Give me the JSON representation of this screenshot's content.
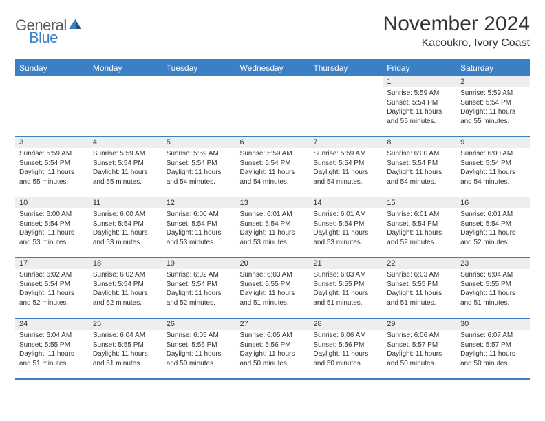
{
  "brand": {
    "text_general": "General",
    "text_blue": "Blue",
    "general_color": "#5a5a5a",
    "blue_color": "#3b7fc4"
  },
  "title": "November 2024",
  "location": "Kacoukro, Ivory Coast",
  "colors": {
    "header_bg": "#3b7fc4",
    "header_text": "#ffffff",
    "daynum_bg": "#eceeef",
    "text": "#333333",
    "border": "#3b7fc4",
    "page_bg": "#ffffff"
  },
  "typography": {
    "title_fontsize": 30,
    "location_fontsize": 16,
    "dayhead_fontsize": 12,
    "daynum_fontsize": 11,
    "body_fontsize": 10
  },
  "day_names": [
    "Sunday",
    "Monday",
    "Tuesday",
    "Wednesday",
    "Thursday",
    "Friday",
    "Saturday"
  ],
  "weeks": [
    [
      {
        "empty": true
      },
      {
        "empty": true
      },
      {
        "empty": true
      },
      {
        "empty": true
      },
      {
        "empty": true
      },
      {
        "day": "1",
        "sunrise": "Sunrise: 5:59 AM",
        "sunset": "Sunset: 5:54 PM",
        "daylight": "Daylight: 11 hours and 55 minutes."
      },
      {
        "day": "2",
        "sunrise": "Sunrise: 5:59 AM",
        "sunset": "Sunset: 5:54 PM",
        "daylight": "Daylight: 11 hours and 55 minutes."
      }
    ],
    [
      {
        "day": "3",
        "sunrise": "Sunrise: 5:59 AM",
        "sunset": "Sunset: 5:54 PM",
        "daylight": "Daylight: 11 hours and 55 minutes."
      },
      {
        "day": "4",
        "sunrise": "Sunrise: 5:59 AM",
        "sunset": "Sunset: 5:54 PM",
        "daylight": "Daylight: 11 hours and 55 minutes."
      },
      {
        "day": "5",
        "sunrise": "Sunrise: 5:59 AM",
        "sunset": "Sunset: 5:54 PM",
        "daylight": "Daylight: 11 hours and 54 minutes."
      },
      {
        "day": "6",
        "sunrise": "Sunrise: 5:59 AM",
        "sunset": "Sunset: 5:54 PM",
        "daylight": "Daylight: 11 hours and 54 minutes."
      },
      {
        "day": "7",
        "sunrise": "Sunrise: 5:59 AM",
        "sunset": "Sunset: 5:54 PM",
        "daylight": "Daylight: 11 hours and 54 minutes."
      },
      {
        "day": "8",
        "sunrise": "Sunrise: 6:00 AM",
        "sunset": "Sunset: 5:54 PM",
        "daylight": "Daylight: 11 hours and 54 minutes."
      },
      {
        "day": "9",
        "sunrise": "Sunrise: 6:00 AM",
        "sunset": "Sunset: 5:54 PM",
        "daylight": "Daylight: 11 hours and 54 minutes."
      }
    ],
    [
      {
        "day": "10",
        "sunrise": "Sunrise: 6:00 AM",
        "sunset": "Sunset: 5:54 PM",
        "daylight": "Daylight: 11 hours and 53 minutes."
      },
      {
        "day": "11",
        "sunrise": "Sunrise: 6:00 AM",
        "sunset": "Sunset: 5:54 PM",
        "daylight": "Daylight: 11 hours and 53 minutes."
      },
      {
        "day": "12",
        "sunrise": "Sunrise: 6:00 AM",
        "sunset": "Sunset: 5:54 PM",
        "daylight": "Daylight: 11 hours and 53 minutes."
      },
      {
        "day": "13",
        "sunrise": "Sunrise: 6:01 AM",
        "sunset": "Sunset: 5:54 PM",
        "daylight": "Daylight: 11 hours and 53 minutes."
      },
      {
        "day": "14",
        "sunrise": "Sunrise: 6:01 AM",
        "sunset": "Sunset: 5:54 PM",
        "daylight": "Daylight: 11 hours and 53 minutes."
      },
      {
        "day": "15",
        "sunrise": "Sunrise: 6:01 AM",
        "sunset": "Sunset: 5:54 PM",
        "daylight": "Daylight: 11 hours and 52 minutes."
      },
      {
        "day": "16",
        "sunrise": "Sunrise: 6:01 AM",
        "sunset": "Sunset: 5:54 PM",
        "daylight": "Daylight: 11 hours and 52 minutes."
      }
    ],
    [
      {
        "day": "17",
        "sunrise": "Sunrise: 6:02 AM",
        "sunset": "Sunset: 5:54 PM",
        "daylight": "Daylight: 11 hours and 52 minutes."
      },
      {
        "day": "18",
        "sunrise": "Sunrise: 6:02 AM",
        "sunset": "Sunset: 5:54 PM",
        "daylight": "Daylight: 11 hours and 52 minutes."
      },
      {
        "day": "19",
        "sunrise": "Sunrise: 6:02 AM",
        "sunset": "Sunset: 5:54 PM",
        "daylight": "Daylight: 11 hours and 52 minutes."
      },
      {
        "day": "20",
        "sunrise": "Sunrise: 6:03 AM",
        "sunset": "Sunset: 5:55 PM",
        "daylight": "Daylight: 11 hours and 51 minutes."
      },
      {
        "day": "21",
        "sunrise": "Sunrise: 6:03 AM",
        "sunset": "Sunset: 5:55 PM",
        "daylight": "Daylight: 11 hours and 51 minutes."
      },
      {
        "day": "22",
        "sunrise": "Sunrise: 6:03 AM",
        "sunset": "Sunset: 5:55 PM",
        "daylight": "Daylight: 11 hours and 51 minutes."
      },
      {
        "day": "23",
        "sunrise": "Sunrise: 6:04 AM",
        "sunset": "Sunset: 5:55 PM",
        "daylight": "Daylight: 11 hours and 51 minutes."
      }
    ],
    [
      {
        "day": "24",
        "sunrise": "Sunrise: 6:04 AM",
        "sunset": "Sunset: 5:55 PM",
        "daylight": "Daylight: 11 hours and 51 minutes."
      },
      {
        "day": "25",
        "sunrise": "Sunrise: 6:04 AM",
        "sunset": "Sunset: 5:55 PM",
        "daylight": "Daylight: 11 hours and 51 minutes."
      },
      {
        "day": "26",
        "sunrise": "Sunrise: 6:05 AM",
        "sunset": "Sunset: 5:56 PM",
        "daylight": "Daylight: 11 hours and 50 minutes."
      },
      {
        "day": "27",
        "sunrise": "Sunrise: 6:05 AM",
        "sunset": "Sunset: 5:56 PM",
        "daylight": "Daylight: 11 hours and 50 minutes."
      },
      {
        "day": "28",
        "sunrise": "Sunrise: 6:06 AM",
        "sunset": "Sunset: 5:56 PM",
        "daylight": "Daylight: 11 hours and 50 minutes."
      },
      {
        "day": "29",
        "sunrise": "Sunrise: 6:06 AM",
        "sunset": "Sunset: 5:57 PM",
        "daylight": "Daylight: 11 hours and 50 minutes."
      },
      {
        "day": "30",
        "sunrise": "Sunrise: 6:07 AM",
        "sunset": "Sunset: 5:57 PM",
        "daylight": "Daylight: 11 hours and 50 minutes."
      }
    ]
  ]
}
